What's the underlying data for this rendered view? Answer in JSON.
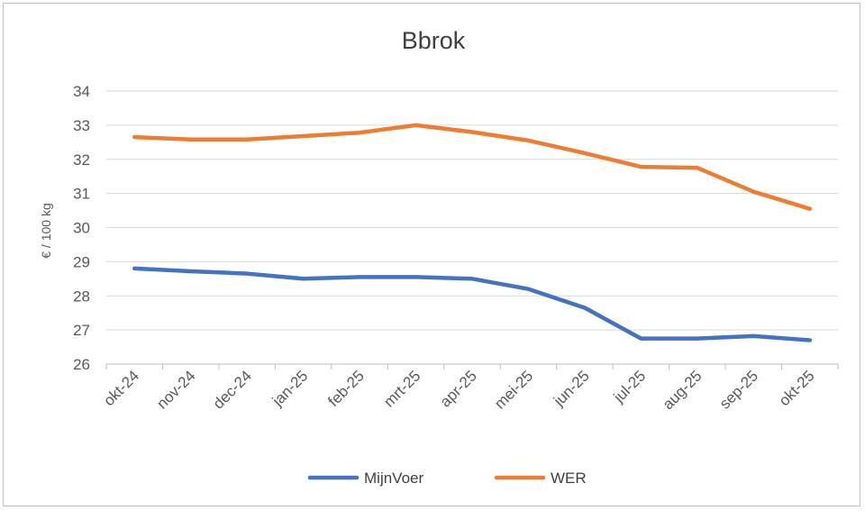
{
  "chart_data": {
    "type": "line",
    "title": "Bbrok",
    "xlabel": "",
    "ylabel": "€ / 100 kg",
    "categories": [
      "okt-24",
      "nov-24",
      "dec-24",
      "jan-25",
      "feb-25",
      "mrt-25",
      "apr-25",
      "mei-25",
      "jun-25",
      "jul-25",
      "aug-25",
      "sep-25",
      "okt-25"
    ],
    "ylim": [
      26,
      34
    ],
    "yticks": [
      "26",
      "27",
      "28",
      "29",
      "30",
      "31",
      "32",
      "33",
      "34"
    ],
    "grid": true,
    "legend_position": "bottom",
    "series": [
      {
        "name": "MijnVoer",
        "color": "#4472c4",
        "values": [
          28.8,
          28.72,
          28.65,
          28.5,
          28.55,
          28.55,
          28.5,
          28.2,
          27.65,
          26.75,
          26.75,
          26.82,
          26.7
        ]
      },
      {
        "name": "WER",
        "color": "#ed7d31",
        "values": [
          32.65,
          32.58,
          32.58,
          32.68,
          32.78,
          33.0,
          32.8,
          32.55,
          32.18,
          31.78,
          31.75,
          31.05,
          30.55
        ]
      }
    ]
  }
}
